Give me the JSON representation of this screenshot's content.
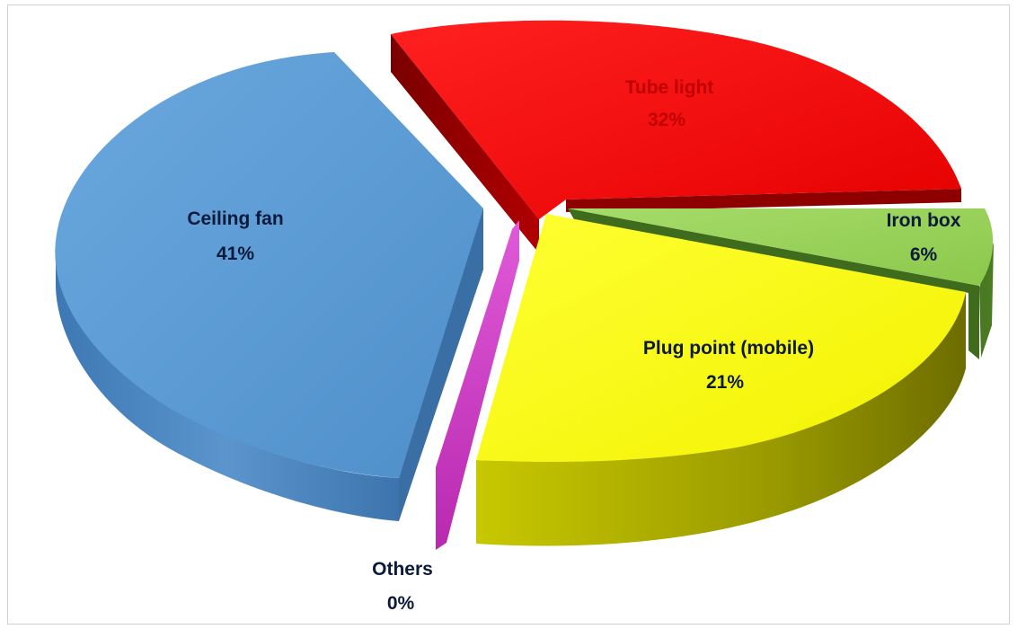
{
  "chart_data": {
    "type": "pie",
    "style": "3d-exploded",
    "slices": [
      {
        "label": "Tube light",
        "value": 32,
        "pct_label": "32%",
        "color": "#ff0000",
        "text_color": "#c00000"
      },
      {
        "label": "Iron box",
        "value": 6,
        "pct_label": "6%",
        "color": "#92d050",
        "text_color": "#0b1a3a"
      },
      {
        "label": "Plug point (mobile)",
        "value": 21,
        "pct_label": "21%",
        "color": "#ffff00",
        "text_color": "#0b1a3a"
      },
      {
        "label": "Others",
        "value": 0,
        "pct_label": "0%",
        "color": "#cc33cc",
        "text_color": "#0b1a3a"
      },
      {
        "label": "Ceiling fan",
        "value": 41,
        "pct_label": "41%",
        "color": "#5b9bd5",
        "text_color": "#0b1a3a"
      }
    ]
  }
}
